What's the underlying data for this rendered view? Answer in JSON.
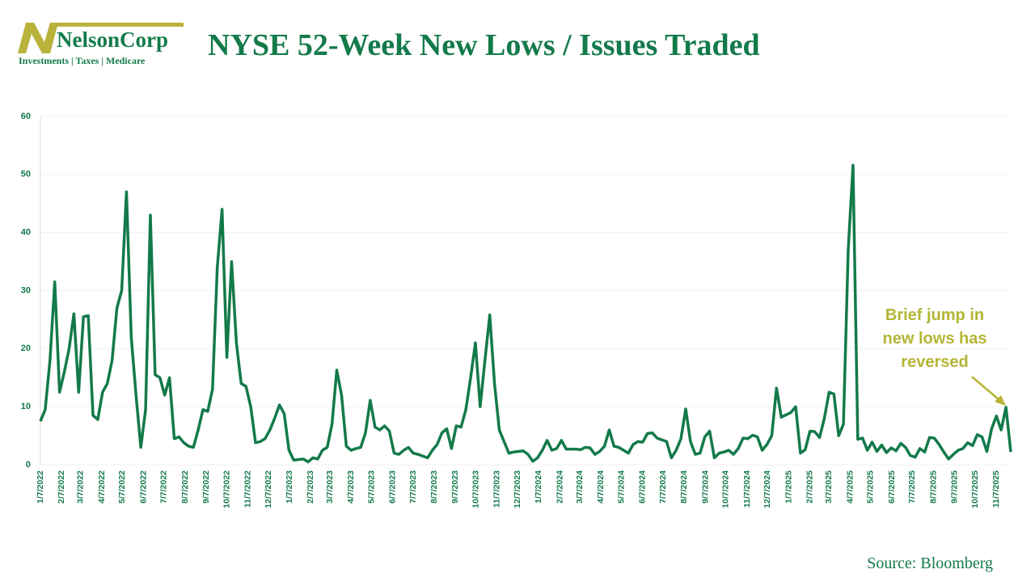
{
  "logo": {
    "name": "NelsonCorp",
    "tagline": "Investments | Taxes | Medicare"
  },
  "chart_data": {
    "type": "line",
    "title": "NYSE 52-Week New Lows / Issues Traded",
    "source": "Source: Bloomberg",
    "annotation": [
      "Brief jump in",
      "new lows has",
      "reversed"
    ],
    "color": "#137a4a",
    "grid": true,
    "ylim": [
      0,
      60
    ],
    "yticks": [
      0,
      10,
      20,
      30,
      40,
      50,
      60
    ],
    "xlim": [
      "1/7/2022",
      "11/28/2025"
    ],
    "xticks": [
      "1/7/2022",
      "2/7/2022",
      "3/7/2022",
      "4/7/2022",
      "5/7/2022",
      "6/7/2022",
      "7/7/2022",
      "8/7/2022",
      "9/7/2022",
      "10/7/2022",
      "11/7/2022",
      "12/7/2022",
      "1/7/2023",
      "2/7/2023",
      "3/7/2023",
      "4/7/2023",
      "5/7/2023",
      "6/7/2023",
      "7/7/2023",
      "8/7/2023",
      "9/7/2023",
      "10/7/2023",
      "11/7/2023",
      "12/7/2023",
      "1/7/2024",
      "2/7/2024",
      "3/7/2024",
      "4/7/2024",
      "5/7/2024",
      "6/7/2024",
      "7/7/2024",
      "8/7/2024",
      "9/7/2024",
      "10/7/2024",
      "11/7/2024",
      "12/7/2024",
      "1/7/2025",
      "2/7/2025",
      "3/7/2025",
      "4/7/2025",
      "5/7/2025",
      "6/7/2025",
      "7/7/2025",
      "8/7/2025",
      "9/7/2025",
      "10/7/2025",
      "11/7/2025"
    ],
    "x": [
      "1/7/2022",
      "1/14/2022",
      "1/21/2022",
      "1/28/2022",
      "2/4/2022",
      "2/11/2022",
      "2/18/2022",
      "2/25/2022",
      "3/4/2022",
      "3/11/2022",
      "3/18/2022",
      "3/25/2022",
      "4/1/2022",
      "4/8/2022",
      "4/15/2022",
      "4/22/2022",
      "4/29/2022",
      "5/6/2022",
      "5/13/2022",
      "5/20/2022",
      "5/27/2022",
      "6/3/2022",
      "6/10/2022",
      "6/17/2022",
      "6/24/2022",
      "7/1/2022",
      "7/8/2022",
      "7/15/2022",
      "7/22/2022",
      "7/29/2022",
      "8/5/2022",
      "8/12/2022",
      "8/19/2022",
      "8/26/2022",
      "9/2/2022",
      "9/9/2022",
      "9/16/2022",
      "9/23/2022",
      "9/30/2022",
      "10/7/2022",
      "10/14/2022",
      "10/21/2022",
      "10/28/2022",
      "11/4/2022",
      "11/11/2022",
      "11/18/2022",
      "11/25/2022",
      "12/2/2022",
      "12/9/2022",
      "12/16/2022",
      "12/23/2022",
      "12/30/2022",
      "1/6/2023",
      "1/13/2023",
      "1/20/2023",
      "1/27/2023",
      "2/3/2023",
      "2/10/2023",
      "2/17/2023",
      "2/24/2023",
      "3/3/2023",
      "3/10/2023",
      "3/17/2023",
      "3/24/2023",
      "3/31/2023",
      "4/7/2023",
      "4/14/2023",
      "4/21/2023",
      "4/28/2023",
      "5/5/2023",
      "5/12/2023",
      "5/19/2023",
      "5/26/2023",
      "6/2/2023",
      "6/9/2023",
      "6/16/2023",
      "6/23/2023",
      "6/30/2023",
      "7/7/2023",
      "7/14/2023",
      "7/21/2023",
      "7/28/2023",
      "8/4/2023",
      "8/11/2023",
      "8/18/2023",
      "8/25/2023",
      "9/1/2023",
      "9/8/2023",
      "9/15/2023",
      "9/22/2023",
      "9/29/2023",
      "10/6/2023",
      "10/13/2023",
      "10/20/2023",
      "10/27/2023",
      "11/3/2023",
      "11/10/2023",
      "11/17/2023",
      "11/24/2023",
      "12/1/2023",
      "12/8/2023",
      "12/15/2023",
      "12/22/2023",
      "12/29/2023",
      "1/5/2024",
      "1/12/2024",
      "1/19/2024",
      "1/26/2024",
      "2/2/2024",
      "2/9/2024",
      "2/16/2024",
      "2/23/2024",
      "3/1/2024",
      "3/8/2024",
      "3/15/2024",
      "3/22/2024",
      "3/29/2024",
      "4/5/2024",
      "4/12/2024",
      "4/19/2024",
      "4/26/2024",
      "5/3/2024",
      "5/10/2024",
      "5/17/2024",
      "5/24/2024",
      "5/31/2024",
      "6/7/2024",
      "6/14/2024",
      "6/21/2024",
      "6/28/2024",
      "7/5/2024",
      "7/12/2024",
      "7/19/2024",
      "7/26/2024",
      "8/2/2024",
      "8/9/2024",
      "8/16/2024",
      "8/23/2024",
      "8/30/2024",
      "9/6/2024",
      "9/13/2024",
      "9/20/2024",
      "9/27/2024",
      "10/4/2024",
      "10/11/2024",
      "10/18/2024",
      "10/25/2024",
      "11/1/2024",
      "11/8/2024",
      "11/15/2024",
      "11/22/2024",
      "11/29/2024",
      "12/6/2024",
      "12/13/2024",
      "12/20/2024",
      "12/27/2024",
      "1/3/2025",
      "1/10/2025",
      "1/17/2025",
      "1/24/2025",
      "1/31/2025",
      "2/7/2025",
      "2/14/2025",
      "2/21/2025",
      "2/28/2025",
      "3/7/2025",
      "3/14/2025",
      "3/21/2025",
      "3/28/2025",
      "4/4/2025",
      "4/11/2025",
      "4/18/2025",
      "4/25/2025",
      "5/2/2025",
      "5/9/2025",
      "5/16/2025",
      "5/23/2025",
      "5/30/2025",
      "6/6/2025",
      "6/13/2025",
      "6/20/2025",
      "6/27/2025",
      "7/4/2025",
      "7/11/2025",
      "7/18/2025",
      "7/25/2025",
      "8/1/2025",
      "8/8/2025",
      "8/15/2025",
      "8/22/2025",
      "8/29/2025",
      "9/5/2025",
      "9/12/2025",
      "9/19/2025",
      "9/26/2025",
      "10/3/2025",
      "10/10/2025",
      "10/17/2025",
      "10/24/2025",
      "10/31/2025",
      "11/7/2025",
      "11/14/2025",
      "11/21/2025",
      "11/28/2025"
    ],
    "values": [
      7.5,
      9.5,
      18,
      31.5,
      12.5,
      16,
      20,
      26,
      12.5,
      25.5,
      25.7,
      8.5,
      7.8,
      12.5,
      14,
      18,
      27,
      30,
      47,
      22,
      12,
      3,
      9.5,
      43,
      15.5,
      15,
      12,
      15,
      4.5,
      4.8,
      3.8,
      3.2,
      3,
      6,
      9.5,
      9.2,
      13,
      34,
      44,
      18.5,
      35,
      21,
      14,
      13.5,
      10,
      3.8,
      4,
      4.5,
      6,
      8,
      10.3,
      8.8,
      2.5,
      0.8,
      0.9,
      1,
      0.5,
      1.2,
      1,
      2.5,
      3,
      7,
      16.3,
      12,
      3.2,
      2.5,
      2.8,
      3,
      5.5,
      11.1,
      6.5,
      6,
      6.7,
      5.8,
      2,
      1.8,
      2.5,
      3,
      2,
      1.8,
      1.5,
      1.2,
      2.5,
      3.5,
      5.5,
      6.2,
      2.8,
      6.7,
      6.5,
      9.5,
      15,
      21,
      10,
      18,
      25.8,
      14,
      6,
      4,
      2,
      2.2,
      2.3,
      2.4,
      1.8,
      0.6,
      1.2,
      2.5,
      4.2,
      2.5,
      2.8,
      4.2,
      2.7,
      2.7,
      2.7,
      2.6,
      3,
      2.9,
      1.8,
      2.3,
      3.2,
      6,
      3.2,
      3,
      2.5,
      2,
      3.5,
      4,
      3.9,
      5.4,
      5.5,
      4.6,
      4.3,
      4,
      1.2,
      2.5,
      4.5,
      9.6,
      4,
      1.8,
      2,
      4.8,
      5.8,
      1.2,
      2,
      2.2,
      2.5,
      1.8,
      2.8,
      4.6,
      4.5,
      5.1,
      4.8,
      2.5,
      3.5,
      5,
      13.2,
      8.2,
      8.6,
      9,
      10,
      2,
      2.6,
      5.8,
      5.7,
      4.7,
      8,
      12.5,
      12.2,
      5,
      7,
      37,
      51.6,
      4.4,
      4.6,
      2.5,
      3.9,
      2.3,
      3.4,
      2.1,
      2.9,
      2.4,
      3.7,
      3,
      1.6,
      1.3,
      2.8,
      2.2,
      4.7,
      4.6,
      3.5,
      2.2,
      1,
      1.8,
      2.5,
      2.8,
      3.8,
      3.3,
      5.2,
      4.8,
      2.3,
      6.2,
      8.4,
      6,
      9.9,
      2.2
    ]
  }
}
